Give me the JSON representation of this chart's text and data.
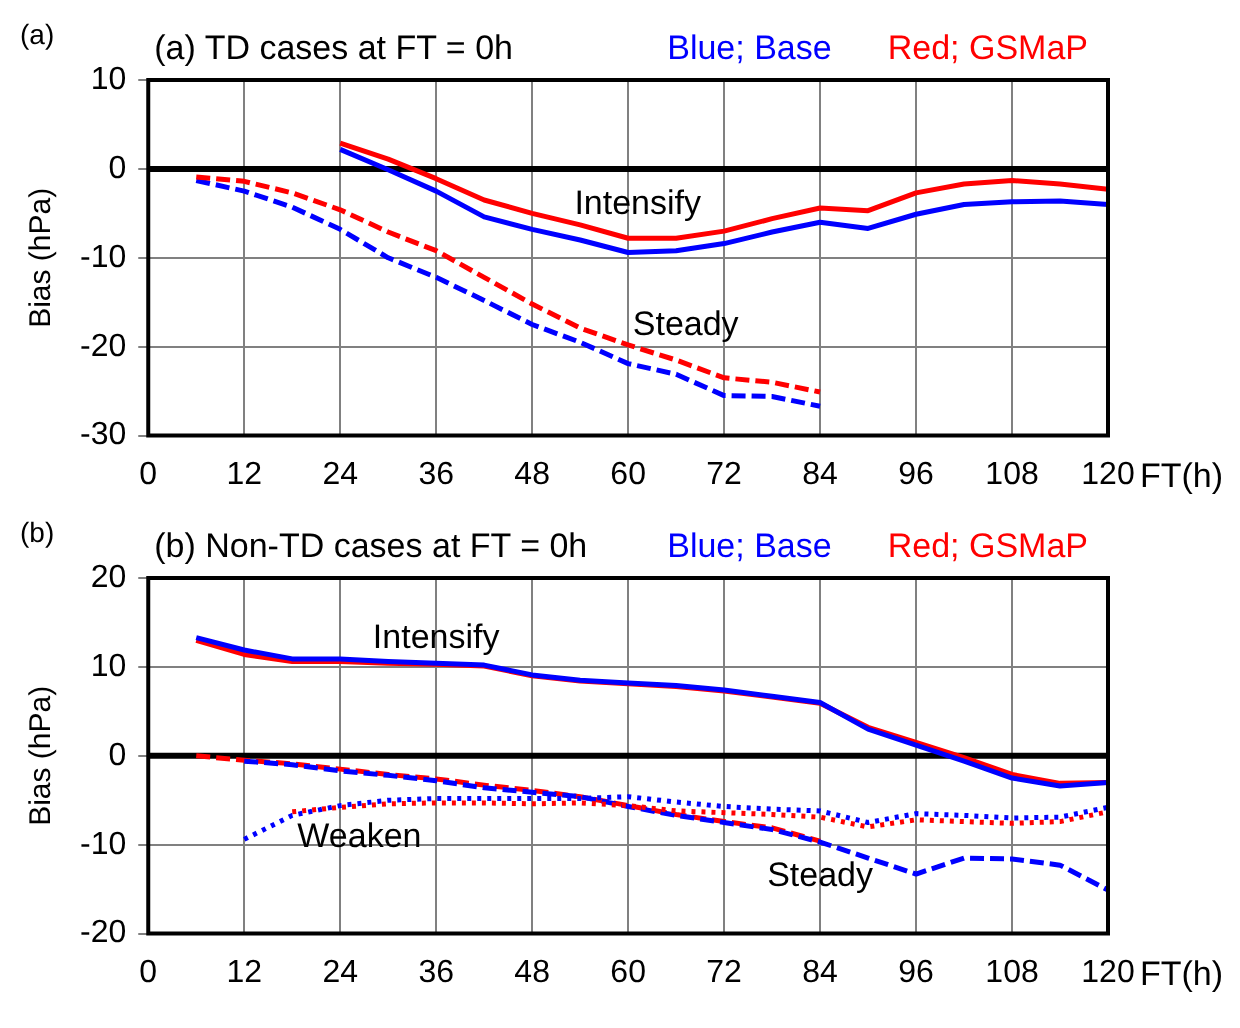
{
  "chart_data": [
    {
      "type": "line",
      "title": "(a) TD cases at FT = 0h",
      "xlabel": "FT(h)",
      "ylabel": "Bias (hPa)",
      "x": [
        6,
        12,
        18,
        24,
        30,
        36,
        42,
        48,
        54,
        60,
        66,
        72,
        78,
        84,
        90,
        96,
        102,
        108,
        114,
        120
      ],
      "xlim": [
        0,
        120
      ],
      "xticks": [
        0,
        12,
        24,
        36,
        48,
        60,
        72,
        84,
        96,
        108,
        120
      ],
      "ylim": [
        -30,
        10
      ],
      "yticks": [
        -30,
        -20,
        -10,
        0,
        10
      ],
      "grid": true,
      "legend": "top right",
      "marker": "none",
      "ref_lines": [
        {
          "axis": "y",
          "value": 0,
          "color": "#000000"
        }
      ],
      "annotations": [
        "(a)",
        "Intensify",
        "Steady"
      ],
      "series": [
        {
          "name": "Blue; Base",
          "color": "#0000ff",
          "line_style": "solid",
          "values": [
            null,
            null,
            null,
            2.2,
            -0.1,
            -2.5,
            -5.4,
            -6.8,
            -8,
            -9.4,
            -9.2,
            -8.4,
            -7.1,
            -6,
            -6.7,
            -5.1,
            -4,
            -3.7,
            -3.6,
            -4
          ]
        },
        {
          "name": "Red; GSMaP",
          "color": "#ff0000",
          "line_style": "solid",
          "values": [
            null,
            null,
            null,
            2.9,
            1.1,
            -1.1,
            -3.5,
            -5,
            -6.3,
            -7.8,
            -7.8,
            -7,
            -5.6,
            -4.4,
            -4.7,
            -2.7,
            -1.7,
            -1.3,
            -1.7,
            -2.3
          ]
        },
        {
          "color": "#0000ff",
          "line_style": "dashed",
          "values": [
            -1.3,
            -2.5,
            -4.3,
            -6.8,
            -10,
            -12.2,
            -14.8,
            -17.5,
            -19.5,
            -21.9,
            -23.1,
            -25.5,
            -25.6,
            -26.7,
            null,
            null,
            null,
            null,
            null,
            null
          ]
        },
        {
          "color": "#ff0000",
          "line_style": "dashed",
          "values": [
            -0.9,
            -1.4,
            -2.7,
            -4.6,
            -7.1,
            -9.2,
            -12.2,
            -15.2,
            -17.9,
            -19.8,
            -21.5,
            -23.5,
            -24,
            -25.1,
            null,
            null,
            null,
            null,
            null,
            null
          ]
        }
      ]
    },
    {
      "type": "line",
      "title": "(b) Non-TD cases at FT = 0h",
      "xlabel": "FT(h)",
      "ylabel": "Bias (hPa)",
      "x": [
        6,
        12,
        18,
        24,
        30,
        36,
        42,
        48,
        54,
        60,
        66,
        72,
        78,
        84,
        90,
        96,
        102,
        108,
        114,
        120
      ],
      "xlim": [
        0,
        120
      ],
      "xticks": [
        0,
        12,
        24,
        36,
        48,
        60,
        72,
        84,
        96,
        108,
        120
      ],
      "ylim": [
        -20,
        20
      ],
      "yticks": [
        -20,
        -10,
        0,
        10,
        20
      ],
      "grid": true,
      "legend": "top right",
      "marker": "none",
      "ref_lines": [
        {
          "axis": "y",
          "value": 0,
          "color": "#000000"
        }
      ],
      "annotations": [
        "(b)",
        "Intensify",
        "Weaken",
        "Steady"
      ],
      "series": [
        {
          "color": "#ff0000",
          "line_style": "solid",
          "values": [
            13,
            11.4,
            10.6,
            10.6,
            10.4,
            10.3,
            10.1,
            9,
            8.4,
            8.1,
            7.8,
            7.3,
            6.6,
            5.9,
            3.2,
            1.5,
            -0.2,
            -2.1,
            -3.1,
            -3
          ]
        },
        {
          "name": "Blue; Base",
          "color": "#0000ff",
          "line_style": "solid",
          "values": [
            13.3,
            11.9,
            10.9,
            10.9,
            10.6,
            10.4,
            10.2,
            9.1,
            8.5,
            8.2,
            7.9,
            7.4,
            6.7,
            6,
            3,
            1.2,
            -0.6,
            -2.5,
            -3.4,
            -3
          ]
        },
        {
          "color": "#ff0000",
          "line_style": "dashed",
          "values": [
            0,
            -0.5,
            -0.9,
            -1.5,
            -2.1,
            -2.6,
            -3.3,
            -3.9,
            -4.6,
            -5.6,
            -6.6,
            -7.4,
            -8.1,
            -9.6,
            null,
            null,
            null,
            null,
            null,
            null
          ]
        },
        {
          "color": "#0000ff",
          "line_style": "dashed",
          "values": [
            null,
            -0.6,
            -1,
            -1.7,
            -2.2,
            -2.8,
            -3.6,
            -4.1,
            -4.6,
            -5.7,
            -6.7,
            -7.5,
            -8.3,
            -9.7,
            -11.5,
            -13.3,
            -11.5,
            -11.6,
            -12.3,
            -15.1
          ]
        },
        {
          "name": "Red; GSMaP",
          "color": "#ff0000",
          "line_style": "dotted",
          "values": [
            null,
            null,
            -6.3,
            -5.8,
            -5.4,
            -5.3,
            -5.3,
            -5.4,
            -5.3,
            -5.6,
            -6.2,
            -6.4,
            -6.6,
            -6.9,
            -8,
            -7.2,
            -7.4,
            -7.6,
            -7.4,
            -6.3
          ]
        },
        {
          "color": "#0000ff",
          "line_style": "dotted",
          "values": [
            null,
            -9.4,
            -6.7,
            -5.6,
            -5,
            -4.8,
            -4.8,
            -4.8,
            -4.8,
            -4.6,
            -5.2,
            -5.7,
            -6,
            -6.2,
            -7.5,
            -6.5,
            -6.7,
            -7,
            -6.9,
            -5.8
          ]
        }
      ]
    }
  ]
}
